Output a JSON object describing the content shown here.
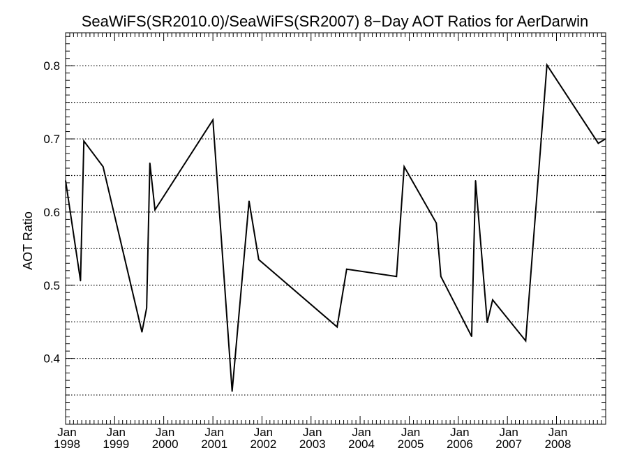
{
  "chart_data": {
    "type": "line",
    "title": "SeaWiFS(SR2010.0)/SeaWiFS(SR2007) 8−Day AOT Ratios for AerDarwin",
    "xlabel": "",
    "ylabel": "AOT Ratio",
    "xlim": [
      "1998-01-01",
      "2008-12-31"
    ],
    "ylim": [
      0.31,
      0.845
    ],
    "x_ticks": [
      {
        "date": "1998-01-01",
        "month": "Jan",
        "year": "1998"
      },
      {
        "date": "1999-01-01",
        "month": "Jan",
        "year": "1999"
      },
      {
        "date": "2000-01-01",
        "month": "Jan",
        "year": "2000"
      },
      {
        "date": "2001-01-01",
        "month": "Jan",
        "year": "2001"
      },
      {
        "date": "2002-01-01",
        "month": "Jan",
        "year": "2002"
      },
      {
        "date": "2003-01-01",
        "month": "Jan",
        "year": "2003"
      },
      {
        "date": "2004-01-01",
        "month": "Jan",
        "year": "2004"
      },
      {
        "date": "2005-01-01",
        "month": "Jan",
        "year": "2005"
      },
      {
        "date": "2006-01-01",
        "month": "Jan",
        "year": "2006"
      },
      {
        "date": "2007-01-01",
        "month": "Jan",
        "year": "2007"
      },
      {
        "date": "2008-01-01",
        "month": "Jan",
        "year": "2008"
      }
    ],
    "y_ticks": [
      {
        "value": 0.4,
        "label": "0.4"
      },
      {
        "value": 0.5,
        "label": "0.5"
      },
      {
        "value": 0.6,
        "label": "0.6"
      },
      {
        "value": 0.7,
        "label": "0.7"
      },
      {
        "value": 0.8,
        "label": "0.8"
      }
    ],
    "grid_y": [
      0.35,
      0.4,
      0.45,
      0.5,
      0.55,
      0.6,
      0.65,
      0.7,
      0.75,
      0.8
    ],
    "grid_style": "dotted",
    "line_color": "#000000",
    "series": [
      {
        "points": [
          [
            "1998-01-01",
            0.643
          ],
          [
            "1998-04-22",
            0.506
          ],
          [
            "1998-05-17",
            0.697
          ],
          [
            "1998-10-07",
            0.662
          ],
          [
            "1999-07-23",
            0.436
          ],
          [
            "1999-08-27",
            0.469
          ],
          [
            "1999-09-20",
            0.667
          ],
          [
            "1999-10-28",
            0.603
          ],
          [
            "2001-01-01",
            0.726
          ],
          [
            "2001-05-24",
            0.355
          ],
          [
            "2001-09-27",
            0.615
          ],
          [
            "2001-12-08",
            0.535
          ],
          [
            "2003-07-14",
            0.443
          ],
          [
            "2003-09-23",
            0.522
          ],
          [
            "2004-09-28",
            0.512
          ],
          [
            "2004-11-24",
            0.662
          ],
          [
            "2005-07-21",
            0.585
          ],
          [
            "2005-08-24",
            0.512
          ],
          [
            "2006-04-10",
            0.43
          ],
          [
            "2006-05-09",
            0.643
          ],
          [
            "2006-08-04",
            0.449
          ],
          [
            "2006-09-13",
            0.48
          ],
          [
            "2007-05-17",
            0.424
          ],
          [
            "2007-10-22",
            0.801
          ],
          [
            "2008-11-07",
            0.694
          ],
          [
            "2008-12-31",
            0.7
          ]
        ]
      }
    ]
  }
}
